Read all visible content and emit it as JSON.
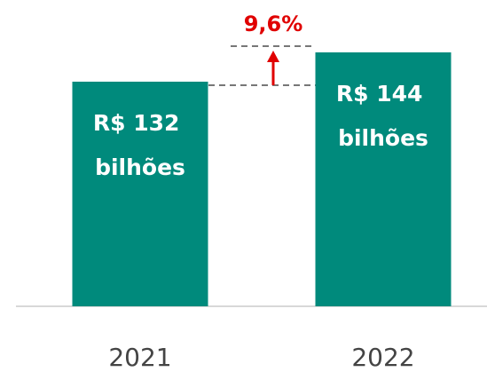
{
  "chart_data": {
    "type": "bar",
    "categories": [
      "2021",
      "2022"
    ],
    "values": [
      132,
      144
    ],
    "value_labels": [
      "R$ 132 bilhões",
      "R$ 144 bilhões"
    ],
    "color": "#008a7c",
    "ylim": [
      40,
      160
    ],
    "annotation": "9,6%",
    "annotation_color": "#e00000"
  }
}
